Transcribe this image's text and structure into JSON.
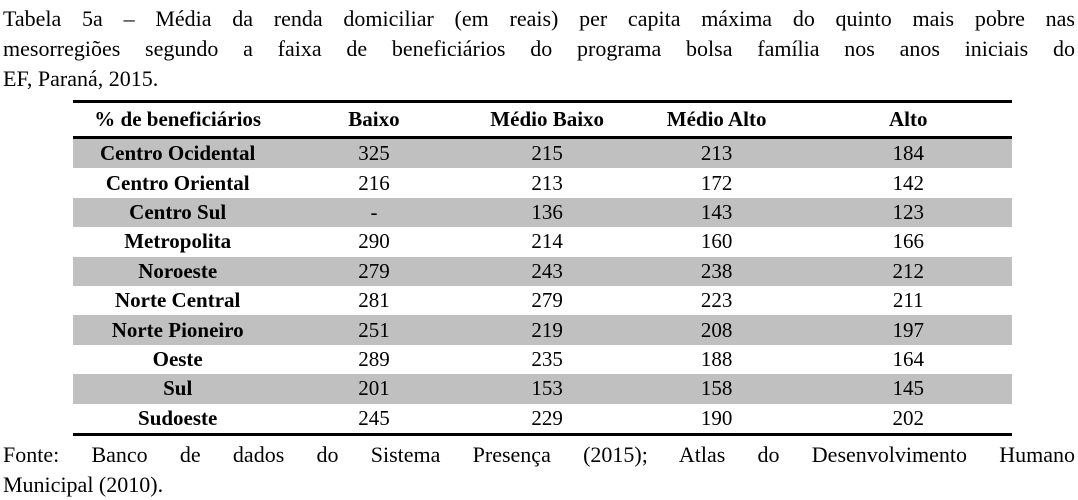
{
  "caption": {
    "line1": "Tabela 5a – Média da renda domiciliar (em reais) per capita máxima do quinto mais pobre nas",
    "line2": "mesorregiões segundo a faixa de beneficiários do programa bolsa família nos anos iniciais do",
    "line3": "EF, Paraná, 2015."
  },
  "table": {
    "columns": [
      "% de beneficiários",
      "Baixo",
      "Médio Baixo",
      "Médio Alto",
      "Alto"
    ],
    "rows": [
      {
        "region": "Centro Ocidental",
        "values": [
          "325",
          "215",
          "213",
          "184"
        ],
        "shaded": true
      },
      {
        "region": "Centro Oriental",
        "values": [
          "216",
          "213",
          "172",
          "142"
        ],
        "shaded": false
      },
      {
        "region": "Centro Sul",
        "values": [
          "-",
          "136",
          "143",
          "123"
        ],
        "shaded": true
      },
      {
        "region": "Metropolita",
        "values": [
          "290",
          "214",
          "160",
          "166"
        ],
        "shaded": false
      },
      {
        "region": "Noroeste",
        "values": [
          "279",
          "243",
          "238",
          "212"
        ],
        "shaded": true
      },
      {
        "region": "Norte Central",
        "values": [
          "281",
          "279",
          "223",
          "211"
        ],
        "shaded": false
      },
      {
        "region": "Norte Pioneiro",
        "values": [
          "251",
          "219",
          "208",
          "197"
        ],
        "shaded": true
      },
      {
        "region": "Oeste",
        "values": [
          "289",
          "235",
          "188",
          "164"
        ],
        "shaded": false
      },
      {
        "region": "Sul",
        "values": [
          "201",
          "153",
          "158",
          "145"
        ],
        "shaded": true
      },
      {
        "region": "Sudoeste",
        "values": [
          "245",
          "229",
          "190",
          "202"
        ],
        "shaded": false
      }
    ],
    "row_shading_color": "#c0c0c0",
    "rule_color": "#000000"
  },
  "source": {
    "line1": "Fonte: Banco de dados do Sistema Presença (2015); Atlas do Desenvolvimento Humano",
    "line2": "Municipal (2010)."
  }
}
